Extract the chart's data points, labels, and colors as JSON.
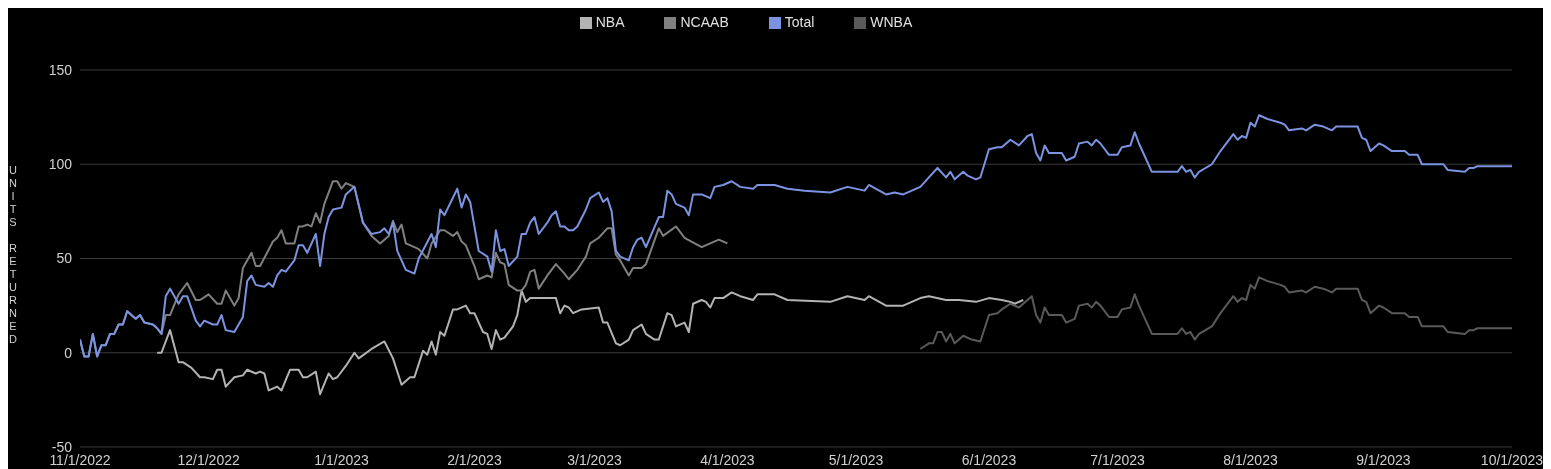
{
  "chart_data": {
    "type": "line",
    "ylabel": "UNITS RETURNED",
    "legend": "top",
    "grid": "y",
    "line_style": "solid",
    "xlim": [
      "2022-11-01",
      "2023-10-01"
    ],
    "xticks": [
      {
        "value": "2022-11-01",
        "label": "11/1/2022"
      },
      {
        "value": "2022-12-01",
        "label": "12/1/2022"
      },
      {
        "value": "2023-01-01",
        "label": "1/1/2023"
      },
      {
        "value": "2023-02-01",
        "label": "2/1/2023"
      },
      {
        "value": "2023-03-01",
        "label": "3/1/2023"
      },
      {
        "value": "2023-04-01",
        "label": "4/1/2023"
      },
      {
        "value": "2023-05-01",
        "label": "5/1/2023"
      },
      {
        "value": "2023-06-01",
        "label": "6/1/2023"
      },
      {
        "value": "2023-07-01",
        "label": "7/1/2023"
      },
      {
        "value": "2023-08-01",
        "label": "8/1/2023"
      },
      {
        "value": "2023-09-01",
        "label": "9/1/2023"
      },
      {
        "value": "2023-10-01",
        "label": "10/1/2023"
      }
    ],
    "ylim": [
      -50,
      150
    ],
    "yticks": [
      -50,
      0,
      50,
      100,
      150
    ],
    "series": [
      {
        "name": "NBA",
        "color": "#b3b3b3",
        "x": [
          "2022-11-19",
          "2022-11-20",
          "2022-11-22",
          "2022-11-24",
          "2022-11-25",
          "2022-11-27",
          "2022-11-29",
          "2022-11-30",
          "2022-12-02",
          "2022-12-03",
          "2022-12-04",
          "2022-12-05",
          "2022-12-07",
          "2022-12-09",
          "2022-12-10",
          "2022-12-12",
          "2022-12-13",
          "2022-12-14",
          "2022-12-15",
          "2022-12-17",
          "2022-12-18",
          "2022-12-20",
          "2022-12-22",
          "2022-12-23",
          "2022-12-24",
          "2022-12-26",
          "2022-12-27",
          "2022-12-29",
          "2022-12-30",
          "2022-12-31",
          "2023-01-02",
          "2023-01-04",
          "2023-01-05",
          "2023-01-08",
          "2023-01-11",
          "2023-01-13",
          "2023-01-15",
          "2023-01-17",
          "2023-01-18",
          "2023-01-20",
          "2023-01-21",
          "2023-01-22",
          "2023-01-23",
          "2023-01-24",
          "2023-01-25",
          "2023-01-27",
          "2023-01-28",
          "2023-01-30",
          "2023-01-31",
          "2023-02-01",
          "2023-02-03",
          "2023-02-04",
          "2023-02-05",
          "2023-02-06",
          "2023-02-07",
          "2023-02-08",
          "2023-02-10",
          "2023-02-11",
          "2023-02-12",
          "2023-02-13",
          "2023-02-14",
          "2023-02-20",
          "2023-02-21",
          "2023-02-22",
          "2023-02-23",
          "2023-02-24",
          "2023-02-26",
          "2023-03-02",
          "2023-03-03",
          "2023-03-04",
          "2023-03-06",
          "2023-03-07",
          "2023-03-09",
          "2023-03-10",
          "2023-03-12",
          "2023-03-13",
          "2023-03-15",
          "2023-03-16",
          "2023-03-18",
          "2023-03-19",
          "2023-03-20",
          "2023-03-22",
          "2023-03-23",
          "2023-03-24",
          "2023-03-26",
          "2023-03-27",
          "2023-03-28",
          "2023-03-29",
          "2023-03-31",
          "2023-04-02",
          "2023-04-04",
          "2023-04-07",
          "2023-04-08",
          "2023-04-12",
          "2023-04-15",
          "2023-04-25",
          "2023-04-29",
          "2023-05-03",
          "2023-05-04",
          "2023-05-08",
          "2023-05-12",
          "2023-05-16",
          "2023-05-18",
          "2023-05-22",
          "2023-05-25",
          "2023-05-29",
          "2023-06-01",
          "2023-06-04",
          "2023-06-06",
          "2023-06-07",
          "2023-06-09"
        ],
        "values": [
          0,
          0,
          12,
          -5,
          -5,
          -8,
          -13,
          -13,
          -14,
          -9,
          -9,
          -18,
          -13,
          -12,
          -9,
          -11,
          -10,
          -11,
          -20,
          -18,
          -20,
          -9,
          -9,
          -13,
          -13,
          -10,
          -22,
          -11,
          -14,
          -13,
          -7,
          0,
          -3,
          2,
          6,
          -3,
          -17,
          -13,
          -13,
          1,
          -1,
          6,
          -1,
          11,
          9,
          23,
          23,
          25,
          21,
          21,
          11,
          10,
          2,
          12,
          7,
          8,
          14,
          20,
          33,
          27,
          29,
          29,
          21,
          25,
          24,
          21,
          23,
          24,
          16,
          16,
          5,
          4,
          7,
          12,
          15,
          10,
          7,
          7,
          21,
          20,
          14,
          16,
          11,
          26,
          28,
          27,
          24,
          29,
          29,
          32,
          30,
          28,
          31,
          31,
          28,
          27,
          30,
          28,
          30,
          25,
          25,
          29,
          30,
          28,
          28,
          27,
          29,
          28,
          27,
          26,
          28
        ]
      },
      {
        "name": "NCAAB",
        "color": "#808080",
        "x": [
          "2022-11-01",
          "2022-11-02",
          "2022-11-03",
          "2022-11-04",
          "2022-11-05",
          "2022-11-06",
          "2022-11-07",
          "2022-11-08",
          "2022-11-09",
          "2022-11-10",
          "2022-11-11",
          "2022-11-12",
          "2022-11-14",
          "2022-11-15",
          "2022-11-16",
          "2022-11-18",
          "2022-11-19",
          "2022-11-20",
          "2022-11-21",
          "2022-11-22",
          "2022-11-24",
          "2022-11-26",
          "2022-11-28",
          "2022-11-29",
          "2022-12-01",
          "2022-12-03",
          "2022-12-04",
          "2022-12-05",
          "2022-12-07",
          "2022-12-08",
          "2022-12-09",
          "2022-12-11",
          "2022-12-12",
          "2022-12-13",
          "2022-12-16",
          "2022-12-17",
          "2022-12-18",
          "2022-12-19",
          "2022-12-21",
          "2022-12-22",
          "2022-12-23",
          "2022-12-24",
          "2022-12-25",
          "2022-12-26",
          "2022-12-27",
          "2022-12-28",
          "2022-12-30",
          "2022-12-31",
          "2023-01-01",
          "2023-01-02",
          "2023-01-04",
          "2023-01-06",
          "2023-01-08",
          "2023-01-10",
          "2023-01-12",
          "2023-01-13",
          "2023-01-14",
          "2023-01-15",
          "2023-01-16",
          "2023-01-18",
          "2023-01-19",
          "2023-01-21",
          "2023-01-22",
          "2023-01-24",
          "2023-01-25",
          "2023-01-27",
          "2023-01-28",
          "2023-01-29",
          "2023-01-30",
          "2023-02-01",
          "2023-02-02",
          "2023-02-04",
          "2023-02-05",
          "2023-02-06",
          "2023-02-07",
          "2023-02-08",
          "2023-02-09",
          "2023-02-11",
          "2023-02-12",
          "2023-02-13",
          "2023-02-14",
          "2023-02-15",
          "2023-02-16",
          "2023-02-18",
          "2023-02-20",
          "2023-02-22",
          "2023-02-23",
          "2023-02-25",
          "2023-02-27",
          "2023-02-28",
          "2023-03-02",
          "2023-03-04",
          "2023-03-05",
          "2023-03-06",
          "2023-03-07",
          "2023-03-09",
          "2023-03-10",
          "2023-03-12",
          "2023-03-13",
          "2023-03-16",
          "2023-03-17",
          "2023-03-20",
          "2023-03-22",
          "2023-03-26",
          "2023-03-28",
          "2023-03-30",
          "2023-04-01"
        ],
        "values": [
          7,
          -2,
          -2,
          10,
          -2,
          4,
          4,
          10,
          10,
          15,
          15,
          22,
          18,
          20,
          16,
          15,
          13,
          10,
          20,
          20,
          31,
          37,
          28,
          28,
          31,
          26,
          26,
          33,
          25,
          29,
          45,
          53,
          46,
          46,
          59,
          61,
          65,
          58,
          58,
          67,
          67,
          68,
          67,
          74,
          69,
          79,
          91,
          91,
          87,
          90,
          88,
          69,
          62,
          58,
          62,
          70,
          64,
          68,
          58,
          56,
          55,
          50,
          58,
          65,
          65,
          62,
          64,
          59,
          57,
          46,
          39,
          41,
          40,
          53,
          48,
          47,
          36,
          33,
          33,
          36,
          43,
          44,
          34,
          41,
          47,
          42,
          39,
          44,
          51,
          58,
          61,
          66,
          66,
          52,
          49,
          41,
          45,
          45,
          47,
          66,
          62,
          67,
          61,
          56,
          58,
          60,
          58
        ]
      },
      {
        "name": "WNBA",
        "color": "#5a5a5a",
        "x": [
          "2023-05-16",
          "2023-05-18",
          "2023-05-19",
          "2023-05-20",
          "2023-05-21",
          "2023-05-22",
          "2023-05-23",
          "2023-05-24",
          "2023-05-26",
          "2023-05-28",
          "2023-05-30",
          "2023-06-01",
          "2023-06-03",
          "2023-06-04",
          "2023-06-06",
          "2023-06-08",
          "2023-06-10",
          "2023-06-11",
          "2023-06-12",
          "2023-06-13",
          "2023-06-14",
          "2023-06-15",
          "2023-06-18",
          "2023-06-19",
          "2023-06-21",
          "2023-06-22",
          "2023-06-24",
          "2023-06-25",
          "2023-06-26",
          "2023-06-27",
          "2023-06-29",
          "2023-07-01",
          "2023-07-02",
          "2023-07-04",
          "2023-07-05",
          "2023-07-06",
          "2023-07-09",
          "2023-07-15",
          "2023-07-16",
          "2023-07-17",
          "2023-07-18",
          "2023-07-19",
          "2023-07-20",
          "2023-07-23",
          "2023-07-25",
          "2023-07-28",
          "2023-07-29",
          "2023-07-30",
          "2023-07-31",
          "2023-08-01",
          "2023-08-02",
          "2023-08-03",
          "2023-08-05",
          "2023-08-08",
          "2023-08-09",
          "2023-08-10",
          "2023-08-13",
          "2023-08-14",
          "2023-08-16",
          "2023-08-18",
          "2023-08-20",
          "2023-08-21",
          "2023-08-26",
          "2023-08-27",
          "2023-08-28",
          "2023-08-29",
          "2023-08-31",
          "2023-09-01",
          "2023-09-03",
          "2023-09-06",
          "2023-09-07",
          "2023-09-09",
          "2023-09-10",
          "2023-09-15",
          "2023-09-16",
          "2023-09-20",
          "2023-09-21",
          "2023-09-22",
          "2023-09-23",
          "2023-10-01"
        ],
        "values": [
          2,
          5,
          5,
          11,
          11,
          6,
          10,
          5,
          9,
          7,
          6,
          20,
          21,
          23,
          26,
          24,
          28,
          30,
          20,
          16,
          24,
          20,
          20,
          16,
          18,
          25,
          26,
          24,
          27,
          25,
          19,
          19,
          23,
          24,
          31,
          25,
          10,
          10,
          13,
          10,
          11,
          7,
          10,
          14,
          21,
          30,
          27,
          29,
          28,
          36,
          34,
          40,
          38,
          36,
          35,
          32,
          33,
          32,
          35,
          34,
          32,
          34,
          34,
          28,
          27,
          21,
          25,
          24,
          21,
          21,
          19,
          19,
          14,
          14,
          11,
          10,
          12,
          12,
          13,
          13
        ]
      },
      {
        "name": "Total",
        "color": "#7b93e0",
        "x": [
          "2022-11-01",
          "2022-11-02",
          "2022-11-03",
          "2022-11-04",
          "2022-11-05",
          "2022-11-06",
          "2022-11-07",
          "2022-11-08",
          "2022-11-09",
          "2022-11-10",
          "2022-11-11",
          "2022-11-12",
          "2022-11-14",
          "2022-11-15",
          "2022-11-16",
          "2022-11-18",
          "2022-11-19",
          "2022-11-20",
          "2022-11-21",
          "2022-11-22",
          "2022-11-24",
          "2022-11-25",
          "2022-11-26",
          "2022-11-28",
          "2022-11-29",
          "2022-11-30",
          "2022-12-02",
          "2022-12-03",
          "2022-12-04",
          "2022-12-05",
          "2022-12-07",
          "2022-12-09",
          "2022-12-10",
          "2022-12-11",
          "2022-12-12",
          "2022-12-14",
          "2022-12-15",
          "2022-12-16",
          "2022-12-17",
          "2022-12-18",
          "2022-12-19",
          "2022-12-21",
          "2022-12-22",
          "2022-12-23",
          "2022-12-24",
          "2022-12-26",
          "2022-12-27",
          "2022-12-28",
          "2022-12-29",
          "2022-12-30",
          "2023-01-01",
          "2023-01-02",
          "2023-01-04",
          "2023-01-06",
          "2023-01-08",
          "2023-01-10",
          "2023-01-11",
          "2023-01-12",
          "2023-01-13",
          "2023-01-14",
          "2023-01-16",
          "2023-01-18",
          "2023-01-19",
          "2023-01-22",
          "2023-01-23",
          "2023-01-24",
          "2023-01-25",
          "2023-01-28",
          "2023-01-29",
          "2023-01-30",
          "2023-01-31",
          "2023-02-02",
          "2023-02-04",
          "2023-02-05",
          "2023-02-06",
          "2023-02-07",
          "2023-02-08",
          "2023-02-09",
          "2023-02-11",
          "2023-02-12",
          "2023-02-13",
          "2023-02-14",
          "2023-02-15",
          "2023-02-16",
          "2023-02-18",
          "2023-02-19",
          "2023-02-20",
          "2023-02-21",
          "2023-02-22",
          "2023-02-23",
          "2023-02-24",
          "2023-02-25",
          "2023-02-27",
          "2023-02-28",
          "2023-03-02",
          "2023-03-03",
          "2023-03-04",
          "2023-03-05",
          "2023-03-06",
          "2023-03-07",
          "2023-03-09",
          "2023-03-10",
          "2023-03-11",
          "2023-03-12",
          "2023-03-13",
          "2023-03-16",
          "2023-03-17",
          "2023-03-18",
          "2023-03-19",
          "2023-03-20",
          "2023-03-22",
          "2023-03-23",
          "2023-03-24",
          "2023-03-26",
          "2023-03-28",
          "2023-03-29",
          "2023-03-31",
          "2023-04-02",
          "2023-04-04",
          "2023-04-07",
          "2023-04-08",
          "2023-04-12",
          "2023-04-15",
          "2023-04-19",
          "2023-04-25",
          "2023-04-29",
          "2023-05-03",
          "2023-05-04",
          "2023-05-08",
          "2023-05-10",
          "2023-05-12",
          "2023-05-16",
          "2023-05-18",
          "2023-05-20",
          "2023-05-22",
          "2023-05-23",
          "2023-05-24",
          "2023-05-26",
          "2023-05-27",
          "2023-05-29",
          "2023-05-30",
          "2023-06-01",
          "2023-06-03",
          "2023-06-04",
          "2023-06-06",
          "2023-06-08",
          "2023-06-10",
          "2023-06-11",
          "2023-06-12",
          "2023-06-13",
          "2023-06-14",
          "2023-06-15",
          "2023-06-18",
          "2023-06-19",
          "2023-06-21",
          "2023-06-22",
          "2023-06-24",
          "2023-06-25",
          "2023-06-26",
          "2023-06-27",
          "2023-06-29",
          "2023-07-01",
          "2023-07-02",
          "2023-07-04",
          "2023-07-05",
          "2023-07-06",
          "2023-07-09",
          "2023-07-15",
          "2023-07-16",
          "2023-07-17",
          "2023-07-18",
          "2023-07-19",
          "2023-07-20",
          "2023-07-23",
          "2023-07-25",
          "2023-07-28",
          "2023-07-29",
          "2023-07-30",
          "2023-07-31",
          "2023-08-01",
          "2023-08-02",
          "2023-08-03",
          "2023-08-05",
          "2023-08-08",
          "2023-08-09",
          "2023-08-10",
          "2023-08-13",
          "2023-08-14",
          "2023-08-16",
          "2023-08-18",
          "2023-08-20",
          "2023-08-21",
          "2023-08-26",
          "2023-08-27",
          "2023-08-28",
          "2023-08-29",
          "2023-08-31",
          "2023-09-01",
          "2023-09-03",
          "2023-09-06",
          "2023-09-07",
          "2023-09-09",
          "2023-09-10",
          "2023-09-15",
          "2023-09-16",
          "2023-09-20",
          "2023-09-21",
          "2023-09-22",
          "2023-09-23",
          "2023-10-01"
        ],
        "values": [
          7,
          -2,
          -2,
          10,
          -2,
          4,
          4,
          10,
          10,
          15,
          15,
          22,
          18,
          20,
          16,
          15,
          13,
          10,
          30,
          34,
          26,
          30,
          30,
          17,
          14,
          17,
          15,
          15,
          20,
          12,
          11,
          19,
          38,
          41,
          36,
          35,
          37,
          35,
          41,
          44,
          43,
          49,
          57,
          57,
          53,
          63,
          46,
          63,
          72,
          76,
          77,
          84,
          88,
          69,
          63,
          64,
          66,
          63,
          69,
          54,
          44,
          42,
          50,
          63,
          56,
          76,
          73,
          87,
          77,
          84,
          80,
          54,
          51,
          43,
          65,
          54,
          55,
          46,
          51,
          63,
          63,
          69,
          72,
          63,
          69,
          73,
          75,
          67,
          67,
          65,
          65,
          67,
          76,
          82,
          85,
          80,
          82,
          75,
          54,
          51,
          49,
          56,
          60,
          61,
          56,
          72,
          72,
          86,
          84,
          79,
          77,
          73,
          84,
          84,
          82,
          88,
          89,
          91,
          88,
          87,
          89,
          89,
          87,
          86,
          85,
          88,
          86,
          89,
          84,
          85,
          84,
          88,
          93,
          98,
          93,
          96,
          92,
          96,
          94,
          92,
          93,
          108,
          109,
          109,
          113,
          110,
          115,
          116,
          106,
          102,
          110,
          106,
          106,
          102,
          104,
          111,
          112,
          110,
          113,
          111,
          105,
          105,
          109,
          110,
          117,
          111,
          96,
          96,
          99,
          96,
          97,
          93,
          96,
          100,
          107,
          116,
          113,
          115,
          114,
          122,
          120,
          126,
          124,
          122,
          121,
          118,
          119,
          118,
          121,
          120,
          118,
          120,
          120,
          114,
          113,
          107,
          111,
          110,
          107,
          107,
          105,
          105,
          100,
          100,
          97,
          96,
          98,
          98,
          99,
          99
        ]
      }
    ]
  }
}
